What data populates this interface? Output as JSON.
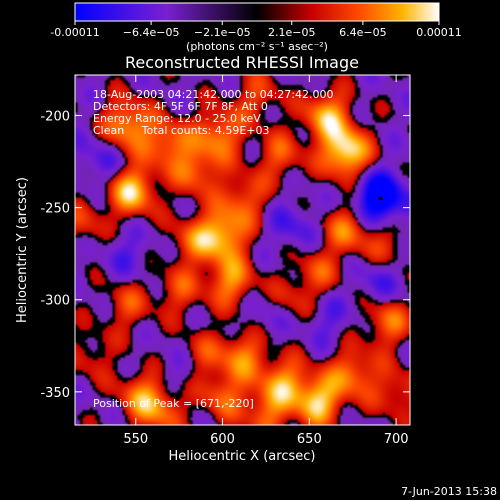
{
  "chart_data": {
    "type": "heatmap",
    "title": "Reconstructed RHESSI Image",
    "xlabel": "Heliocentric X (arcsec)",
    "ylabel": "Heliocentric Y (arcsec)",
    "xlim": [
      515,
      708
    ],
    "ylim": [
      -368,
      -178
    ],
    "x_ticks": [
      550,
      600,
      650,
      700
    ],
    "y_ticks": [
      -200,
      -250,
      -300,
      -350
    ],
    "colorbar": {
      "min": -0.00011,
      "max": 0.00011,
      "tick_values": [
        -0.00011,
        -6.4e-05,
        -2.1e-05,
        2.1e-05,
        6.4e-05,
        0.00011
      ],
      "tick_labels": [
        "-0.00011",
        "−6.4e−05",
        "−2.1e−05",
        "2.1e−05",
        "6.4e−05",
        "0.00011"
      ],
      "label": "(photons cm⁻² s⁻¹ asec⁻²)"
    },
    "annotations": [
      "18-Aug-2003 04:21:42.000 to 04:27:42.000",
      "Detectors: 4F 5F 6F 7F 8F, Att 0",
      "Energy Range: 12.0 - 25.0 keV",
      "Clean     Total counts: 4.59E+03"
    ],
    "peak_label": "Position of Peak = [671,-220]",
    "peak": [
      671,
      -220
    ],
    "min_marker": [
      691,
      -245
    ],
    "sources": [
      {
        "x": 545,
        "y": -205,
        "v": 0.75
      },
      {
        "x": 548,
        "y": -241,
        "v": 0.85
      },
      {
        "x": 568,
        "y": -215,
        "v": 0.6
      },
      {
        "x": 598,
        "y": -210,
        "v": 0.65
      },
      {
        "x": 585,
        "y": -230,
        "v": 0.55
      },
      {
        "x": 612,
        "y": -245,
        "v": 0.5
      },
      {
        "x": 660,
        "y": -200,
        "v": 0.75
      },
      {
        "x": 671,
        "y": -220,
        "v": 1.0
      },
      {
        "x": 633,
        "y": -222,
        "v": 0.45
      },
      {
        "x": 600,
        "y": -265,
        "v": 0.8
      },
      {
        "x": 605,
        "y": -290,
        "v": 0.65
      },
      {
        "x": 583,
        "y": -268,
        "v": 0.45
      },
      {
        "x": 575,
        "y": -295,
        "v": 0.4
      },
      {
        "x": 545,
        "y": -303,
        "v": 0.4
      },
      {
        "x": 672,
        "y": -262,
        "v": 0.55
      },
      {
        "x": 655,
        "y": -285,
        "v": 0.4
      },
      {
        "x": 695,
        "y": -270,
        "v": 0.35
      },
      {
        "x": 612,
        "y": -330,
        "v": 0.6
      },
      {
        "x": 588,
        "y": -330,
        "v": 0.35
      },
      {
        "x": 600,
        "y": -352,
        "v": 0.5
      },
      {
        "x": 635,
        "y": -345,
        "v": 0.65
      },
      {
        "x": 655,
        "y": -355,
        "v": 0.85
      },
      {
        "x": 675,
        "y": -340,
        "v": 0.6
      },
      {
        "x": 553,
        "y": -352,
        "v": 0.55
      },
      {
        "x": 565,
        "y": -360,
        "v": 0.5
      },
      {
        "x": 625,
        "y": -362,
        "v": 0.5
      },
      {
        "x": 695,
        "y": -312,
        "v": 0.55
      },
      {
        "x": 700,
        "y": -350,
        "v": 0.4
      },
      {
        "x": 525,
        "y": -330,
        "v": 0.3
      },
      {
        "x": 520,
        "y": -258,
        "v": 0.35
      },
      {
        "x": 640,
        "y": -300,
        "v": 0.3
      },
      {
        "x": 620,
        "y": -190,
        "v": 0.4
      }
    ],
    "sinks": [
      {
        "x": 691,
        "y": -245,
        "v": 1.0
      },
      {
        "x": 530,
        "y": -225,
        "v": 0.3
      },
      {
        "x": 640,
        "y": -260,
        "v": 0.3
      },
      {
        "x": 660,
        "y": -310,
        "v": 0.25
      },
      {
        "x": 545,
        "y": -275,
        "v": 0.25
      },
      {
        "x": 690,
        "y": -290,
        "v": 0.3
      },
      {
        "x": 575,
        "y": -340,
        "v": 0.2
      },
      {
        "x": 625,
        "y": -310,
        "v": 0.2
      }
    ]
  },
  "timestamp": "7-Jun-2013 15:38"
}
